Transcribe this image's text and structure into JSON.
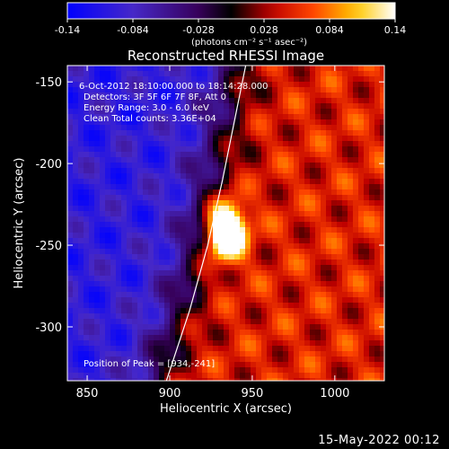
{
  "colorbar": {
    "ticks": [
      "-0.14",
      "-0.084",
      "-0.028",
      "0.028",
      "0.084",
      "0.14"
    ],
    "unit_label": "(photons cm⁻² s⁻¹ asec⁻²)",
    "min": -0.14,
    "max": 0.14
  },
  "chart_data": {
    "type": "heatmap",
    "title": "Reconstructed RHESSI Image",
    "xlabel": "Heliocentric X (arcsec)",
    "ylabel": "Heliocentric Y (arcsec)",
    "xlim": [
      838,
      1030
    ],
    "ylim": [
      -333,
      -140
    ],
    "xticks": [
      "850",
      "900",
      "950",
      "1000"
    ],
    "yticks": [
      "-150",
      "-200",
      "-250",
      "-300"
    ],
    "annotations": [
      "6-Oct-2012 18:10:00.000 to 18:14:28.000",
      "Detectors: 3F 5F 6F 7F 8F, Att 0",
      "Energy Range: 3.0 - 6.0 keV",
      "Clean    Total counts: 3.36E+04"
    ],
    "peak_label": "Position of Peak = [934,-241]",
    "peak": {
      "x": 934,
      "y": -241,
      "value": 0.14
    },
    "background_levels": {
      "left_region": -0.1,
      "right_region": 0.05
    },
    "limb_curve": [
      [
        898,
        -333
      ],
      [
        912,
        -290
      ],
      [
        923,
        -250
      ],
      [
        932,
        -210
      ],
      [
        940,
        -170
      ],
      [
        946,
        -140
      ]
    ]
  },
  "footer": {
    "date_stamp": "15-May-2022 00:12"
  }
}
